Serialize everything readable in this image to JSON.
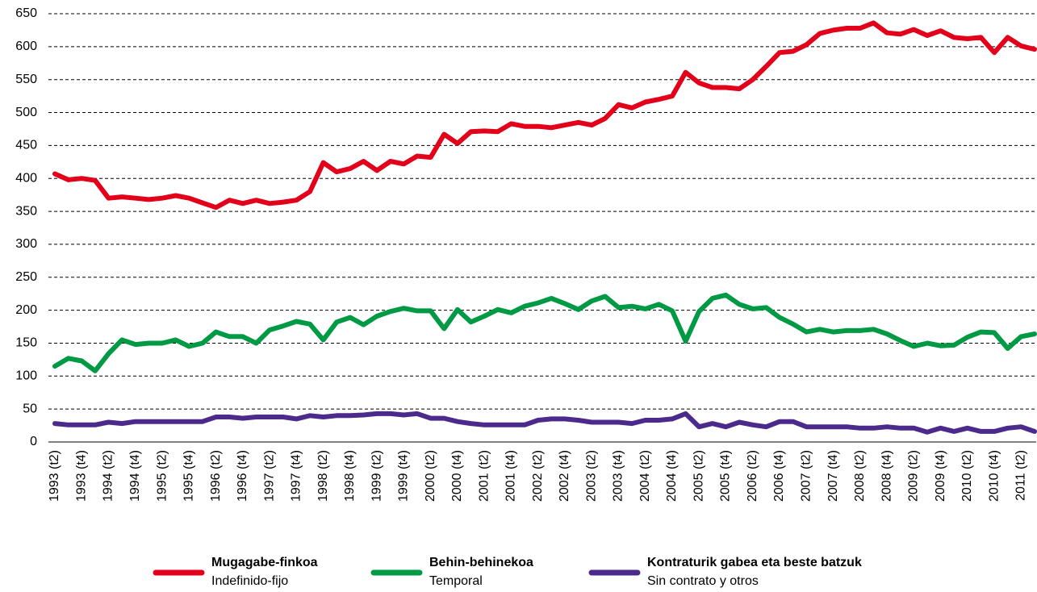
{
  "chart_data": {
    "type": "line",
    "categories": [
      "1993 (t2)",
      null,
      "1993 (t4)",
      null,
      "1994 (t2)",
      null,
      "1994 (t4)",
      null,
      "1995 (t2)",
      null,
      "1995 (t4)",
      null,
      "1996 (t2)",
      null,
      "1996 (t4)",
      null,
      "1997 (t2)",
      null,
      "1997 (t4)",
      null,
      "1998 (t2)",
      null,
      "1998 (t4)",
      null,
      "1999 (t2)",
      null,
      "1999 (t4)",
      null,
      "2000 (t2)",
      null,
      "2000 (t4)",
      null,
      "2001 (t2)",
      null,
      "2001 (t4)",
      null,
      "2002 (t2)",
      null,
      "2002 (t4)",
      null,
      "2003 (t2)",
      null,
      "2003 (t4)",
      null,
      "2004 (t2)",
      null,
      "2004 (t4)",
      null,
      "2005 (t2)",
      null,
      "2005 (t4)",
      null,
      "2006 (t2)",
      null,
      "2006 (t4)",
      null,
      "2007 (t2)",
      null,
      "2007 (t4)",
      null,
      "2008 (t2)",
      null,
      "2008 (t4)",
      null,
      "2009 (t2)",
      null,
      "2009 (t4)",
      null,
      "2010 (t2)",
      null,
      "2010 (t4)",
      null,
      "2011 (t2)",
      null
    ],
    "series": [
      {
        "name": "Mugagabe-finkoa",
        "translation": "Indefinido-fijo",
        "color": "#e2001a",
        "values": [
          407,
          398,
          400,
          397,
          370,
          372,
          370,
          368,
          370,
          374,
          370,
          363,
          356,
          367,
          362,
          367,
          362,
          364,
          367,
          380,
          424,
          410,
          415,
          426,
          412,
          426,
          422,
          434,
          432,
          467,
          453,
          471,
          472,
          471,
          483,
          479,
          479,
          477,
          481,
          485,
          481,
          491,
          512,
          507,
          516,
          520,
          525,
          561,
          545,
          538,
          538,
          536,
          550,
          570,
          591,
          593,
          603,
          620,
          625,
          628,
          628,
          636,
          621,
          619,
          626,
          617,
          624,
          614,
          612,
          614,
          591,
          614,
          601,
          596
        ]
      },
      {
        "name": "Behin-behinekoa",
        "translation": "Temporal",
        "color": "#009a44",
        "values": [
          115,
          127,
          123,
          108,
          134,
          155,
          148,
          150,
          150,
          155,
          145,
          150,
          167,
          160,
          160,
          150,
          170,
          176,
          183,
          179,
          155,
          182,
          189,
          178,
          191,
          198,
          203,
          199,
          199,
          172,
          201,
          182,
          191,
          201,
          196,
          206,
          211,
          218,
          210,
          201,
          214,
          221,
          204,
          206,
          202,
          209,
          199,
          153,
          198,
          218,
          223,
          209,
          202,
          204,
          189,
          179,
          167,
          171,
          167,
          169,
          169,
          171,
          164,
          154,
          145,
          150,
          146,
          147,
          159,
          167,
          166,
          142,
          160,
          164
        ]
      },
      {
        "name": "Kontraturik gabea eta beste batzuk",
        "translation": "Sin contrato y otros",
        "color": "#4b2a8c",
        "values": [
          28,
          26,
          26,
          26,
          30,
          28,
          31,
          31,
          31,
          31,
          31,
          31,
          38,
          38,
          36,
          38,
          38,
          38,
          35,
          40,
          38,
          40,
          40,
          41,
          43,
          43,
          41,
          43,
          36,
          36,
          31,
          28,
          26,
          26,
          26,
          26,
          33,
          35,
          35,
          33,
          30,
          30,
          30,
          28,
          33,
          33,
          35,
          43,
          23,
          28,
          23,
          30,
          26,
          23,
          31,
          31,
          23,
          23,
          23,
          23,
          21,
          21,
          23,
          21,
          21,
          15,
          21,
          16,
          21,
          16,
          16,
          21,
          23,
          16
        ]
      }
    ],
    "ylim": [
      0,
      650
    ],
    "yticks": [
      0,
      50,
      100,
      150,
      200,
      250,
      300,
      350,
      400,
      450,
      500,
      550,
      600,
      650
    ],
    "grid": true
  }
}
